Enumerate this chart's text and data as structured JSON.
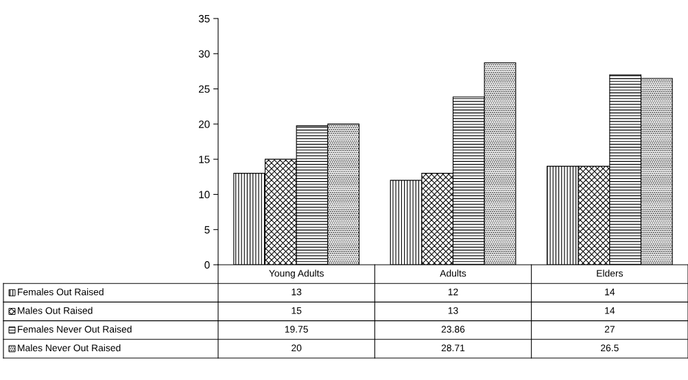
{
  "chart_data": {
    "type": "bar",
    "categories": [
      "Young Adults",
      "Adults",
      "Elders"
    ],
    "series": [
      {
        "name": "Females Out Raised",
        "color": "#000000",
        "values": [
          13,
          12,
          14
        ]
      },
      {
        "name": "Males Out Raised",
        "color": "#000000",
        "values": [
          15,
          13,
          14
        ]
      },
      {
        "name": "Females Never Out Raised",
        "color": "#000000",
        "values": [
          19.75,
          23.86,
          27
        ]
      },
      {
        "name": "Males Never Out Raised",
        "color": "#000000",
        "values": [
          20,
          28.71,
          26.5
        ]
      }
    ],
    "ylim": [
      0,
      35
    ],
    "yticks": [
      0,
      5,
      10,
      15,
      20,
      25,
      30,
      35
    ],
    "data_labels": true,
    "legend": "bottom left"
  }
}
